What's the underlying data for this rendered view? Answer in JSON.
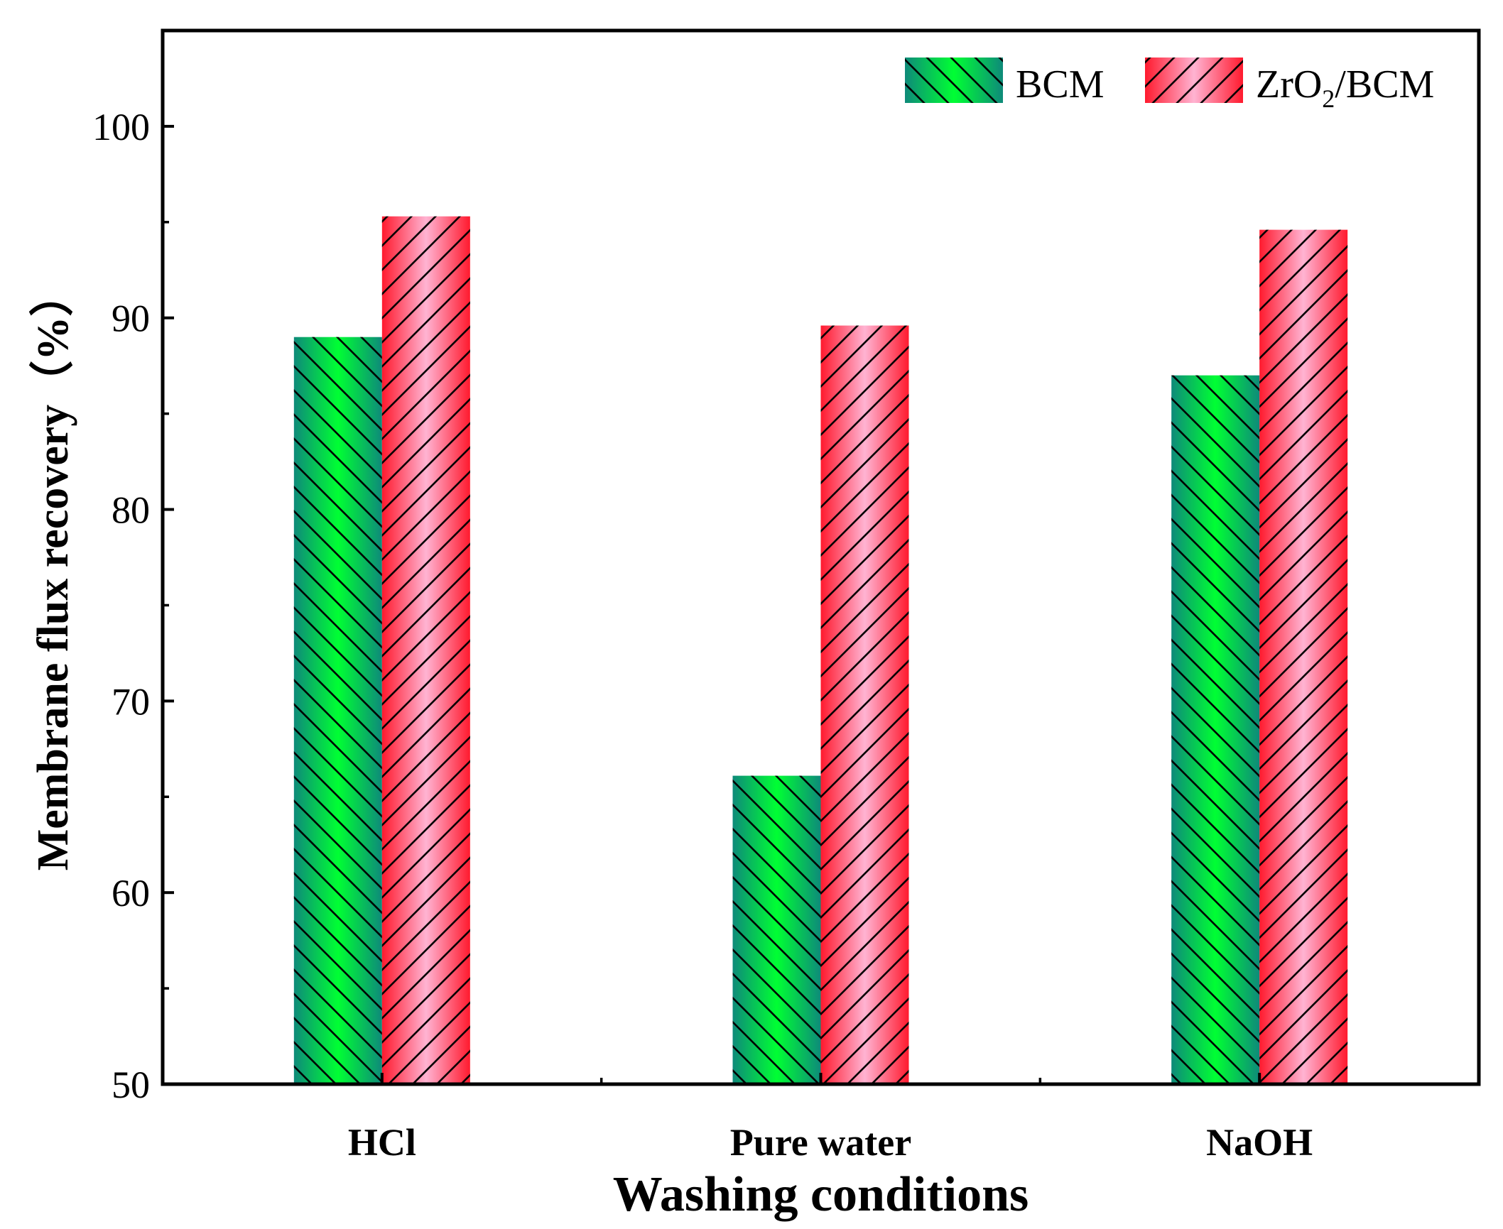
{
  "chart_data": {
    "type": "bar",
    "title": "",
    "xlabel": "Washing conditions",
    "ylabel": "Membrane flux recovery（%）",
    "ylim": [
      50,
      105
    ],
    "yticks_major": [
      50,
      60,
      70,
      80,
      90,
      100
    ],
    "yticks_minor": [
      55,
      65,
      75,
      85,
      95
    ],
    "grid": false,
    "legend_position": "top-right",
    "categories": [
      "HCl",
      "Pure water",
      "NaOH"
    ],
    "series": [
      {
        "name": "BCM",
        "legend_parts": {
          "main": "BCM",
          "sub": "",
          "suffix": ""
        },
        "values": [
          89,
          66.1,
          87
        ],
        "colors": {
          "edge": "#0e8a7a",
          "center": "#00ff33"
        },
        "hatch": "backslash"
      },
      {
        "name": "ZrO2/BCM",
        "legend_parts": {
          "main": "ZrO",
          "sub": "2",
          "suffix": "/BCM"
        },
        "values": [
          95.3,
          89.6,
          94.6
        ],
        "colors": {
          "edge": "#ff1a2e",
          "center": "#ffb3d2"
        },
        "hatch": "slash"
      }
    ]
  }
}
